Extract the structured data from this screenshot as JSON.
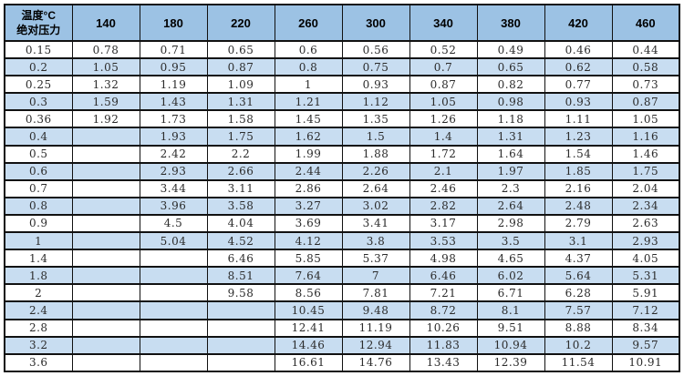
{
  "table": {
    "corner_top": "温度°C",
    "corner_bottom": "绝对压力",
    "column_headers": [
      "140",
      "180",
      "220",
      "260",
      "300",
      "340",
      "380",
      "420",
      "460"
    ],
    "rows": [
      {
        "pressure": "0.15",
        "values": [
          "0.78",
          "0.71",
          "0.65",
          "0.6",
          "0.56",
          "0.52",
          "0.49",
          "0.46",
          "0.44"
        ]
      },
      {
        "pressure": "0.2",
        "values": [
          "1.05",
          "0.95",
          "0.87",
          "0.8",
          "0.75",
          "0.7",
          "0.65",
          "0.62",
          "0.58"
        ]
      },
      {
        "pressure": "0.25",
        "values": [
          "1.32",
          "1.19",
          "1.09",
          "1",
          "0.93",
          "0.87",
          "0.82",
          "0.77",
          "0.73"
        ]
      },
      {
        "pressure": "0.3",
        "values": [
          "1.59",
          "1.43",
          "1.31",
          "1.21",
          "1.12",
          "1.05",
          "0.98",
          "0.93",
          "0.87"
        ]
      },
      {
        "pressure": "0.36",
        "values": [
          "1.92",
          "1.73",
          "1.58",
          "1.45",
          "1.35",
          "1.26",
          "1.18",
          "1.11",
          "1.05"
        ]
      },
      {
        "pressure": "0.4",
        "values": [
          "",
          "1.93",
          "1.75",
          "1.62",
          "1.5",
          "1.4",
          "1.31",
          "1.23",
          "1.16"
        ]
      },
      {
        "pressure": "0.5",
        "values": [
          "",
          "2.42",
          "2.2",
          "1.99",
          "1.88",
          "1.72",
          "1.64",
          "1.54",
          "1.46"
        ]
      },
      {
        "pressure": "0.6",
        "values": [
          "",
          "2.93",
          "2.66",
          "2.44",
          "2.26",
          "2.1",
          "1.97",
          "1.85",
          "1.75"
        ]
      },
      {
        "pressure": "0.7",
        "values": [
          "",
          "3.44",
          "3.11",
          "2.86",
          "2.64",
          "2.46",
          "2.3",
          "2.16",
          "2.04"
        ]
      },
      {
        "pressure": "0.8",
        "values": [
          "",
          "3.96",
          "3.58",
          "3.27",
          "3.02",
          "2.82",
          "2.64",
          "2.48",
          "2.34"
        ]
      },
      {
        "pressure": "0.9",
        "values": [
          "",
          "4.5",
          "4.04",
          "3.69",
          "3.41",
          "3.17",
          "2.98",
          "2.79",
          "2.63"
        ]
      },
      {
        "pressure": "1",
        "values": [
          "",
          "5.04",
          "4.52",
          "4.12",
          "3.8",
          "3.53",
          "3.5",
          "3.1",
          "2.93"
        ]
      },
      {
        "pressure": "1.4",
        "values": [
          "",
          "",
          "6.46",
          "5.85",
          "5.37",
          "4.98",
          "4.65",
          "4.37",
          "4.05"
        ]
      },
      {
        "pressure": "1.8",
        "values": [
          "",
          "",
          "8.51",
          "7.64",
          "7",
          "6.46",
          "6.02",
          "5.64",
          "5.31"
        ]
      },
      {
        "pressure": "2",
        "values": [
          "",
          "",
          "9.58",
          "8.56",
          "7.81",
          "7.21",
          "6.71",
          "6.28",
          "5.91"
        ]
      },
      {
        "pressure": "2.4",
        "values": [
          "",
          "",
          "",
          "10.45",
          "9.48",
          "8.72",
          "8.1",
          "7.57",
          "7.12"
        ]
      },
      {
        "pressure": "2.8",
        "values": [
          "",
          "",
          "",
          "12.41",
          "11.19",
          "10.26",
          "9.51",
          "8.88",
          "8.34"
        ]
      },
      {
        "pressure": "3.2",
        "values": [
          "",
          "",
          "",
          "14.46",
          "12.94",
          "11.83",
          "10.94",
          "10.2",
          "9.57"
        ]
      },
      {
        "pressure": "3.6",
        "values": [
          "",
          "",
          "",
          "16.61",
          "14.76",
          "13.43",
          "12.39",
          "11.54",
          "10.91"
        ]
      }
    ]
  },
  "colors": {
    "header_bg": "#9cc2e4",
    "stripe_bg": "#c8ddf1",
    "row_bg": "#ffffff",
    "border": "#111111",
    "text": "#2b2b2b"
  },
  "chart_data": {
    "type": "table",
    "title": "",
    "corner_label": "温度°C / 绝对压力",
    "columns_temperature_c": [
      140,
      180,
      220,
      260,
      300,
      340,
      380,
      420,
      460
    ],
    "rows_absolute_pressure": [
      0.15,
      0.2,
      0.25,
      0.3,
      0.36,
      0.4,
      0.5,
      0.6,
      0.7,
      0.8,
      0.9,
      1,
      1.4,
      1.8,
      2,
      2.4,
      2.8,
      3.2,
      3.6
    ],
    "values": [
      [
        0.78,
        0.71,
        0.65,
        0.6,
        0.56,
        0.52,
        0.49,
        0.46,
        0.44
      ],
      [
        1.05,
        0.95,
        0.87,
        0.8,
        0.75,
        0.7,
        0.65,
        0.62,
        0.58
      ],
      [
        1.32,
        1.19,
        1.09,
        1,
        0.93,
        0.87,
        0.82,
        0.77,
        0.73
      ],
      [
        1.59,
        1.43,
        1.31,
        1.21,
        1.12,
        1.05,
        0.98,
        0.93,
        0.87
      ],
      [
        1.92,
        1.73,
        1.58,
        1.45,
        1.35,
        1.26,
        1.18,
        1.11,
        1.05
      ],
      [
        null,
        1.93,
        1.75,
        1.62,
        1.5,
        1.4,
        1.31,
        1.23,
        1.16
      ],
      [
        null,
        2.42,
        2.2,
        1.99,
        1.88,
        1.72,
        1.64,
        1.54,
        1.46
      ],
      [
        null,
        2.93,
        2.66,
        2.44,
        2.26,
        2.1,
        1.97,
        1.85,
        1.75
      ],
      [
        null,
        3.44,
        3.11,
        2.86,
        2.64,
        2.46,
        2.3,
        2.16,
        2.04
      ],
      [
        null,
        3.96,
        3.58,
        3.27,
        3.02,
        2.82,
        2.64,
        2.48,
        2.34
      ],
      [
        null,
        4.5,
        4.04,
        3.69,
        3.41,
        3.17,
        2.98,
        2.79,
        2.63
      ],
      [
        null,
        5.04,
        4.52,
        4.12,
        3.8,
        3.53,
        3.5,
        3.1,
        2.93
      ],
      [
        null,
        null,
        6.46,
        5.85,
        5.37,
        4.98,
        4.65,
        4.37,
        4.05
      ],
      [
        null,
        null,
        8.51,
        7.64,
        7,
        6.46,
        6.02,
        5.64,
        5.31
      ],
      [
        null,
        null,
        9.58,
        8.56,
        7.81,
        7.21,
        6.71,
        6.28,
        5.91
      ],
      [
        null,
        null,
        null,
        10.45,
        9.48,
        8.72,
        8.1,
        7.57,
        7.12
      ],
      [
        null,
        null,
        null,
        12.41,
        11.19,
        10.26,
        9.51,
        8.88,
        8.34
      ],
      [
        null,
        null,
        null,
        14.46,
        12.94,
        11.83,
        10.94,
        10.2,
        9.57
      ],
      [
        null,
        null,
        null,
        16.61,
        14.76,
        13.43,
        12.39,
        11.54,
        10.91
      ]
    ],
    "layout": {
      "grid": true,
      "striped_rows": true,
      "legend_position": "none"
    }
  }
}
